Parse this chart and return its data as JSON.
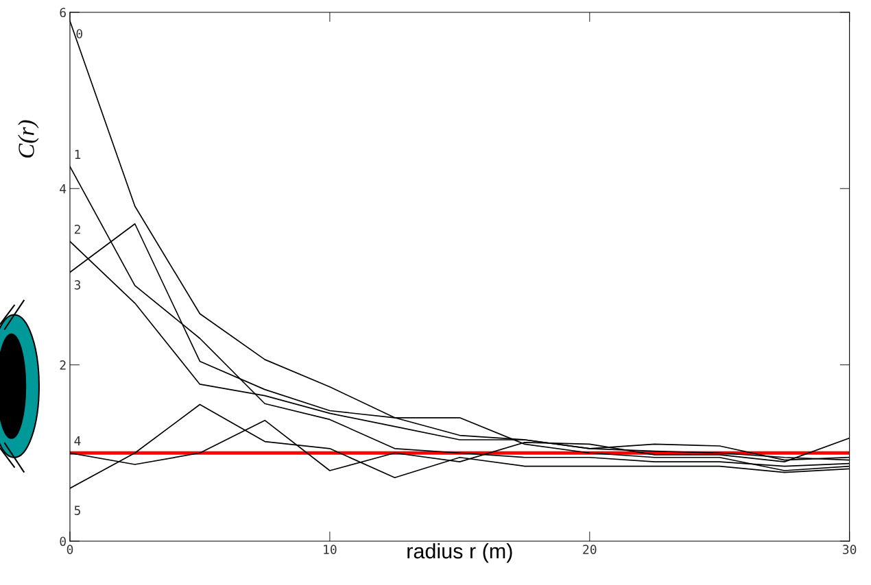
{
  "chart_data": {
    "type": "line",
    "xlabel": "radius r (m)",
    "ylabel": "C(r)",
    "x": [
      0,
      2.5,
      5,
      7.5,
      10,
      12.5,
      15,
      17.5,
      20,
      22.5,
      25,
      27.5,
      30
    ],
    "series": [
      {
        "name": "0",
        "color": "#000000",
        "values": [
          5.9,
          3.8,
          2.58,
          2.06,
          1.75,
          1.4,
          1.2,
          1.15,
          1.05,
          1.02,
          1.0,
          0.95,
          0.92
        ]
      },
      {
        "name": "1",
        "color": "#000000",
        "values": [
          4.25,
          2.9,
          2.3,
          1.56,
          1.38,
          1.05,
          1.0,
          0.95,
          0.95,
          0.9,
          0.9,
          0.85,
          0.88
        ]
      },
      {
        "name": "2",
        "color": "#000000",
        "values": [
          3.4,
          2.7,
          1.78,
          1.65,
          1.45,
          1.3,
          1.15,
          1.15,
          1.05,
          1.1,
          1.08,
          0.92,
          0.95
        ]
      },
      {
        "name": "3",
        "color": "#000000",
        "values": [
          3.05,
          3.6,
          2.04,
          1.72,
          1.48,
          1.4,
          1.4,
          1.1,
          1.0,
          0.95,
          0.95,
          0.8,
          0.85
        ]
      },
      {
        "name": "4",
        "color": "#000000",
        "values": [
          1.0,
          0.87,
          1.0,
          1.37,
          0.8,
          1.0,
          0.9,
          1.12,
          1.1,
          0.98,
          0.98,
          0.9,
          1.17
        ]
      },
      {
        "name": "5",
        "color": "#000000",
        "values": [
          0.6,
          1.0,
          1.55,
          1.13,
          1.05,
          0.72,
          0.95,
          0.85,
          0.85,
          0.85,
          0.85,
          0.78,
          0.82
        ]
      }
    ],
    "ref_lines": [
      {
        "axis": "y",
        "value": 1,
        "color": "#ff0000"
      }
    ],
    "xlim": [
      0,
      30
    ],
    "xticks": [
      0,
      10,
      20,
      30
    ],
    "ylim": [
      0,
      6
    ],
    "yticks": [
      0,
      2,
      4,
      6
    ],
    "grid": false,
    "legend": false,
    "marker": "none",
    "line_style": "solid"
  }
}
